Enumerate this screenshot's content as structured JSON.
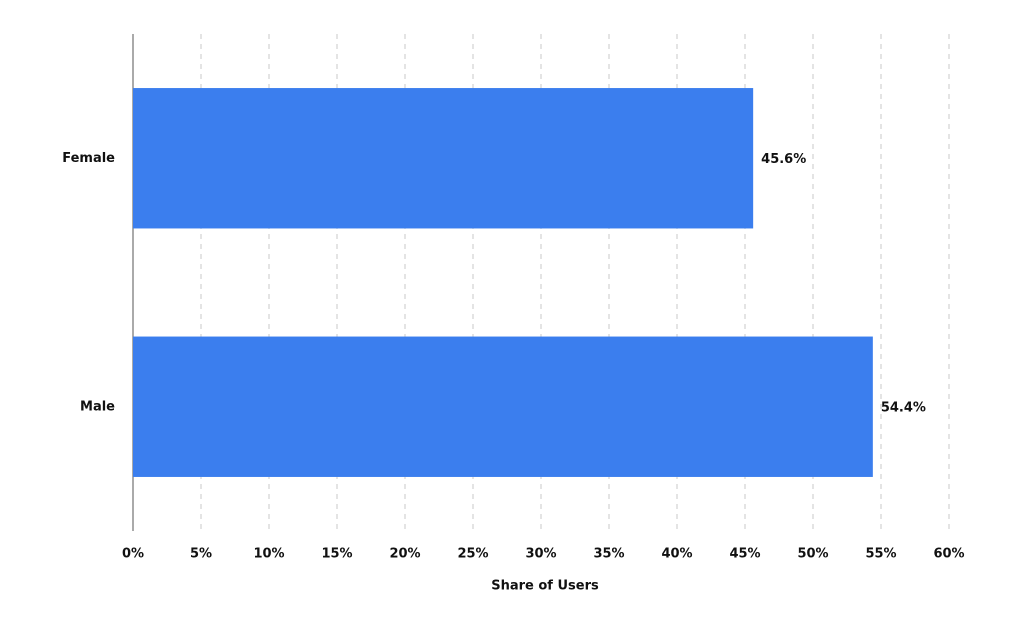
{
  "chart_data": {
    "type": "bar",
    "orientation": "horizontal",
    "categories": [
      "Female",
      "Male"
    ],
    "values": [
      45.6,
      54.4
    ],
    "value_labels": [
      "45.6%",
      "54.4%"
    ],
    "color": "#3b7eee",
    "x_label": "Share of Users",
    "xlim": [
      0,
      60
    ],
    "xticks": [
      {
        "value": 0,
        "label": "0%"
      },
      {
        "value": 5,
        "label": "5%"
      },
      {
        "value": 10,
        "label": "10%"
      },
      {
        "value": 15,
        "label": "15%"
      },
      {
        "value": 20,
        "label": "20%"
      },
      {
        "value": 25,
        "label": "25%"
      },
      {
        "value": 30,
        "label": "30%"
      },
      {
        "value": 35,
        "label": "35%"
      },
      {
        "value": 40,
        "label": "40%"
      },
      {
        "value": 45,
        "label": "45%"
      },
      {
        "value": 50,
        "label": "50%"
      },
      {
        "value": 55,
        "label": "55%"
      },
      {
        "value": 60,
        "label": "60%"
      }
    ],
    "grid": true
  }
}
